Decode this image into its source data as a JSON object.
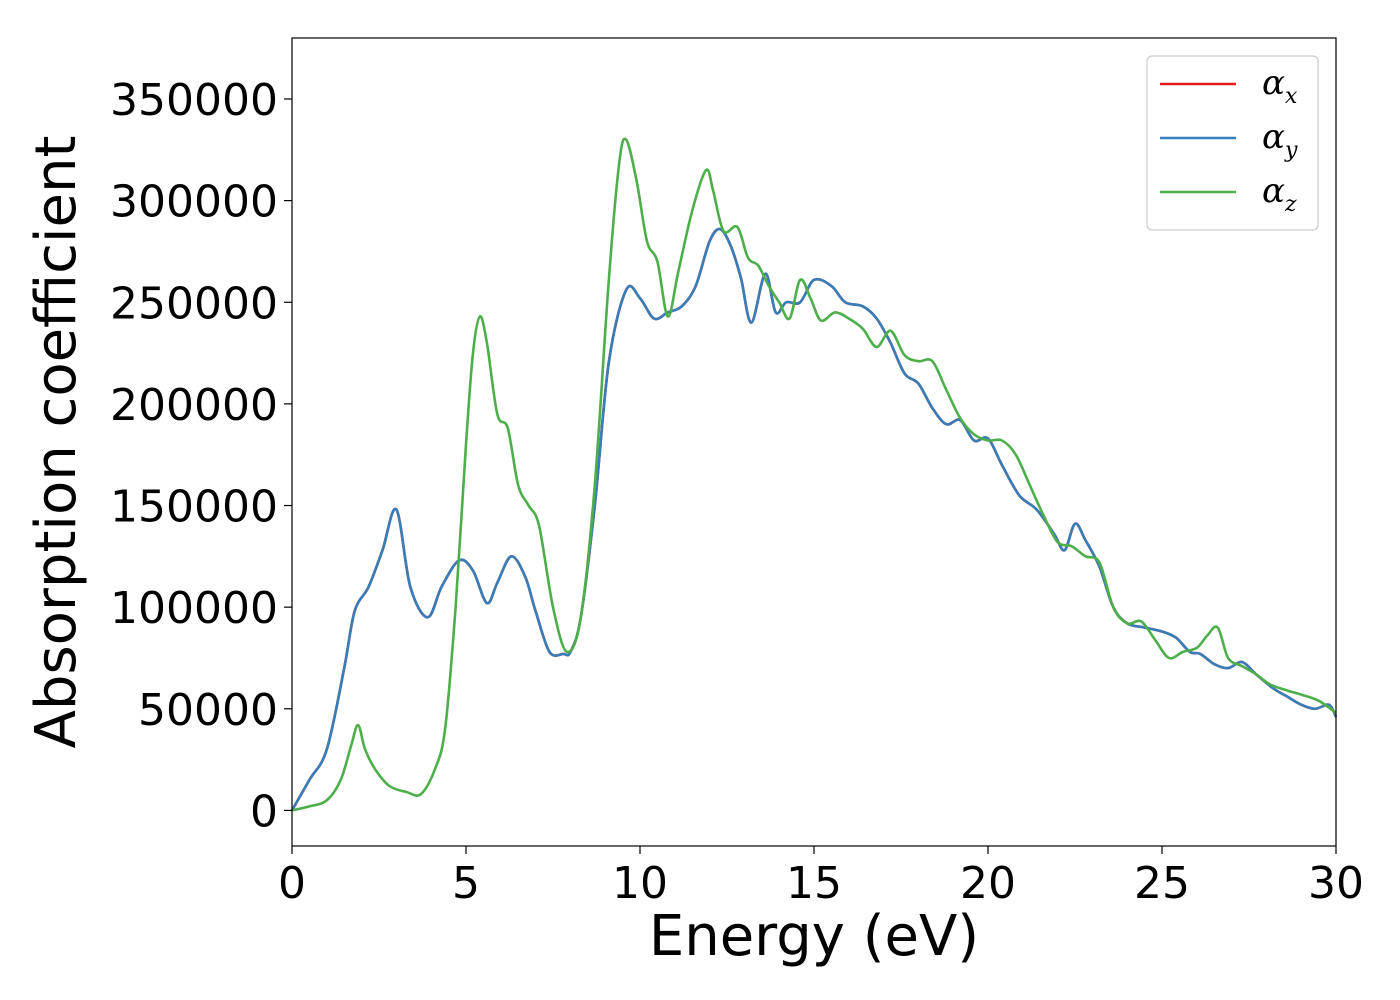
{
  "chart_data": {
    "type": "line",
    "xlabel": "Energy (eV)",
    "ylabel": "Absorption coefficient",
    "xlim": [
      0,
      30
    ],
    "ylim": [
      -17500,
      380000
    ],
    "xticks": [
      0,
      5,
      10,
      15,
      20,
      25,
      30
    ],
    "yticks": [
      0,
      50000,
      100000,
      150000,
      200000,
      250000,
      300000,
      350000
    ],
    "grid": false,
    "legend_position": "top-right",
    "series": [
      {
        "name": "αx",
        "symbol": "α",
        "subscript": "x",
        "color": "#e41a1c",
        "x": [
          0,
          0.5,
          1.0,
          1.5,
          1.8,
          2.2,
          2.6,
          3.0,
          3.4,
          3.9,
          4.3,
          4.8,
          5.2,
          5.6,
          5.9,
          6.3,
          6.7,
          7.0,
          7.4,
          7.8,
          8.0,
          8.3,
          8.7,
          9.1,
          9.6,
          10.0,
          10.4,
          10.8,
          11.2,
          11.6,
          12.0,
          12.3,
          12.6,
          12.9,
          13.2,
          13.6,
          13.9,
          14.2,
          14.6,
          15.0,
          15.5,
          15.9,
          16.4,
          16.8,
          17.2,
          17.6,
          18.0,
          18.4,
          18.8,
          19.2,
          19.6,
          20.0,
          20.4,
          20.9,
          21.4,
          21.9,
          22.2,
          22.5,
          22.8,
          23.2,
          23.6,
          24.0,
          24.5,
          25.0,
          25.4,
          25.8,
          26.1,
          26.5,
          26.9,
          27.3,
          27.7,
          28.2,
          28.6,
          29.0,
          29.4,
          29.8,
          30.0
        ],
        "values": [
          0,
          15000,
          30000,
          70000,
          98000,
          110000,
          128000,
          148000,
          110000,
          95000,
          110000,
          123000,
          118000,
          102000,
          112000,
          125000,
          115000,
          98000,
          78000,
          77000,
          78000,
          95000,
          150000,
          220000,
          256000,
          252000,
          242000,
          245000,
          248000,
          258000,
          280000,
          286000,
          278000,
          262000,
          240000,
          264000,
          245000,
          250000,
          250000,
          261000,
          258000,
          250000,
          248000,
          242000,
          230000,
          215000,
          210000,
          198000,
          190000,
          192000,
          182000,
          183000,
          170000,
          155000,
          148000,
          136000,
          128000,
          141000,
          133000,
          120000,
          100000,
          92000,
          90000,
          88000,
          85000,
          78000,
          77000,
          72000,
          70000,
          73000,
          67000,
          60000,
          56000,
          52000,
          50000,
          52000,
          46000
        ]
      },
      {
        "name": "αy",
        "symbol": "α",
        "subscript": "y",
        "color": "#377eb8",
        "x": [
          0,
          0.5,
          1.0,
          1.5,
          1.8,
          2.2,
          2.6,
          3.0,
          3.4,
          3.9,
          4.3,
          4.8,
          5.2,
          5.6,
          5.9,
          6.3,
          6.7,
          7.0,
          7.4,
          7.8,
          8.0,
          8.3,
          8.7,
          9.1,
          9.6,
          10.0,
          10.4,
          10.8,
          11.2,
          11.6,
          12.0,
          12.3,
          12.6,
          12.9,
          13.2,
          13.6,
          13.9,
          14.2,
          14.6,
          15.0,
          15.5,
          15.9,
          16.4,
          16.8,
          17.2,
          17.6,
          18.0,
          18.4,
          18.8,
          19.2,
          19.6,
          20.0,
          20.4,
          20.9,
          21.4,
          21.9,
          22.2,
          22.5,
          22.8,
          23.2,
          23.6,
          24.0,
          24.5,
          25.0,
          25.4,
          25.8,
          26.1,
          26.5,
          26.9,
          27.3,
          27.7,
          28.2,
          28.6,
          29.0,
          29.4,
          29.8,
          30.0
        ],
        "values": [
          0,
          15000,
          30000,
          70000,
          98000,
          110000,
          128000,
          148000,
          110000,
          95000,
          110000,
          123000,
          118000,
          102000,
          112000,
          125000,
          115000,
          98000,
          78000,
          77000,
          78000,
          95000,
          150000,
          220000,
          256000,
          252000,
          242000,
          245000,
          248000,
          258000,
          280000,
          286000,
          278000,
          262000,
          240000,
          264000,
          245000,
          250000,
          250000,
          261000,
          258000,
          250000,
          248000,
          242000,
          230000,
          215000,
          210000,
          198000,
          190000,
          192000,
          182000,
          183000,
          170000,
          155000,
          148000,
          136000,
          128000,
          141000,
          133000,
          120000,
          100000,
          92000,
          90000,
          88000,
          85000,
          78000,
          77000,
          72000,
          70000,
          73000,
          67000,
          60000,
          56000,
          52000,
          50000,
          52000,
          46000
        ]
      },
      {
        "name": "αz",
        "symbol": "α",
        "subscript": "z",
        "color": "#4daf4a",
        "x": [
          0,
          0.5,
          1.0,
          1.4,
          1.7,
          1.9,
          2.1,
          2.4,
          2.8,
          3.3,
          3.7,
          4.1,
          4.4,
          4.7,
          5.0,
          5.2,
          5.4,
          5.6,
          5.9,
          6.2,
          6.5,
          6.8,
          7.1,
          7.5,
          7.9,
          8.3,
          8.7,
          9.1,
          9.4,
          9.6,
          9.9,
          10.2,
          10.5,
          10.8,
          11.1,
          11.5,
          11.9,
          12.1,
          12.4,
          12.8,
          13.1,
          13.4,
          13.7,
          14.0,
          14.3,
          14.6,
          14.9,
          15.2,
          15.6,
          16.0,
          16.4,
          16.8,
          17.2,
          17.6,
          18.0,
          18.4,
          18.8,
          19.2,
          19.6,
          20.0,
          20.4,
          20.8,
          21.2,
          21.6,
          22.0,
          22.4,
          22.8,
          23.2,
          23.6,
          24.0,
          24.4,
          24.8,
          25.2,
          25.6,
          26.0,
          26.3,
          26.6,
          26.9,
          27.3,
          27.7,
          28.1,
          28.6,
          29.0,
          29.5,
          30.0
        ],
        "values": [
          0,
          2000,
          5000,
          15000,
          32000,
          42000,
          30000,
          20000,
          12000,
          9000,
          8000,
          20000,
          40000,
          100000,
          180000,
          225000,
          243000,
          230000,
          195000,
          188000,
          160000,
          150000,
          140000,
          100000,
          78000,
          95000,
          160000,
          260000,
          318000,
          330000,
          310000,
          280000,
          270000,
          243000,
          265000,
          295000,
          315000,
          305000,
          285000,
          287000,
          272000,
          268000,
          258000,
          250000,
          242000,
          261000,
          252000,
          241000,
          245000,
          242000,
          237000,
          228000,
          236000,
          224000,
          221000,
          221000,
          207000,
          193000,
          185000,
          182000,
          182000,
          175000,
          160000,
          145000,
          132000,
          130000,
          125000,
          122000,
          100000,
          92000,
          93000,
          84000,
          75000,
          78000,
          80000,
          86000,
          90000,
          75000,
          71000,
          67000,
          62000,
          59000,
          57000,
          54000,
          48000
        ]
      }
    ]
  }
}
